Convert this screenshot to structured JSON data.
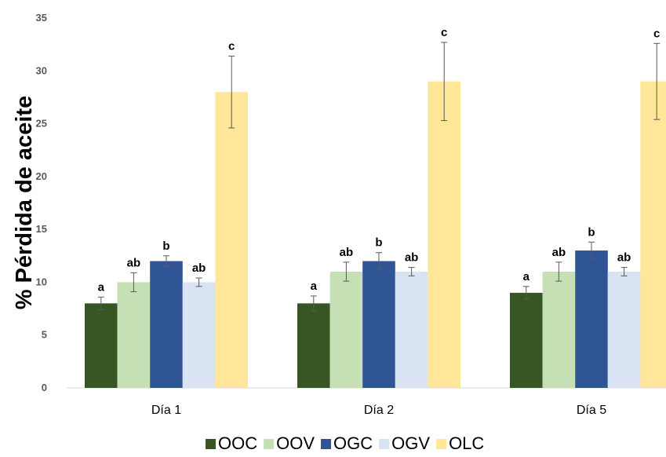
{
  "chart_data": {
    "type": "bar",
    "title": "",
    "xlabel": "",
    "ylabel": "% Pérdida de aceite",
    "ylim": [
      0,
      35
    ],
    "yticks": [
      0,
      5,
      10,
      15,
      20,
      25,
      30,
      35
    ],
    "grid": false,
    "legend_position": "bottom",
    "categories": [
      "Día 1",
      "Día 2",
      "Día 5"
    ],
    "series": [
      {
        "name": "OOC",
        "color": "#375623",
        "values": [
          8,
          8,
          9
        ],
        "errors": [
          0.6,
          0.7,
          0.6
        ],
        "labels": [
          "a",
          "a",
          "a"
        ]
      },
      {
        "name": "OOV",
        "color": "#c5e0b4",
        "values": [
          10,
          11,
          11
        ],
        "errors": [
          0.9,
          0.9,
          0.9
        ],
        "labels": [
          "ab",
          "ab",
          "ab"
        ]
      },
      {
        "name": "OGC",
        "color": "#2f5597",
        "values": [
          12,
          12,
          13
        ],
        "errors": [
          0.5,
          0.8,
          0.8
        ],
        "labels": [
          "b",
          "b",
          "b"
        ]
      },
      {
        "name": "OGV",
        "color": "#dae3f3",
        "values": [
          10,
          11,
          11
        ],
        "errors": [
          0.4,
          0.4,
          0.4
        ],
        "labels": [
          "ab",
          "ab",
          "ab"
        ]
      },
      {
        "name": "OLC",
        "color": "#ffe699",
        "values": [
          28,
          29,
          29
        ],
        "errors": [
          3.4,
          3.7,
          3.6
        ],
        "labels": [
          "c",
          "c",
          "c"
        ]
      }
    ]
  }
}
